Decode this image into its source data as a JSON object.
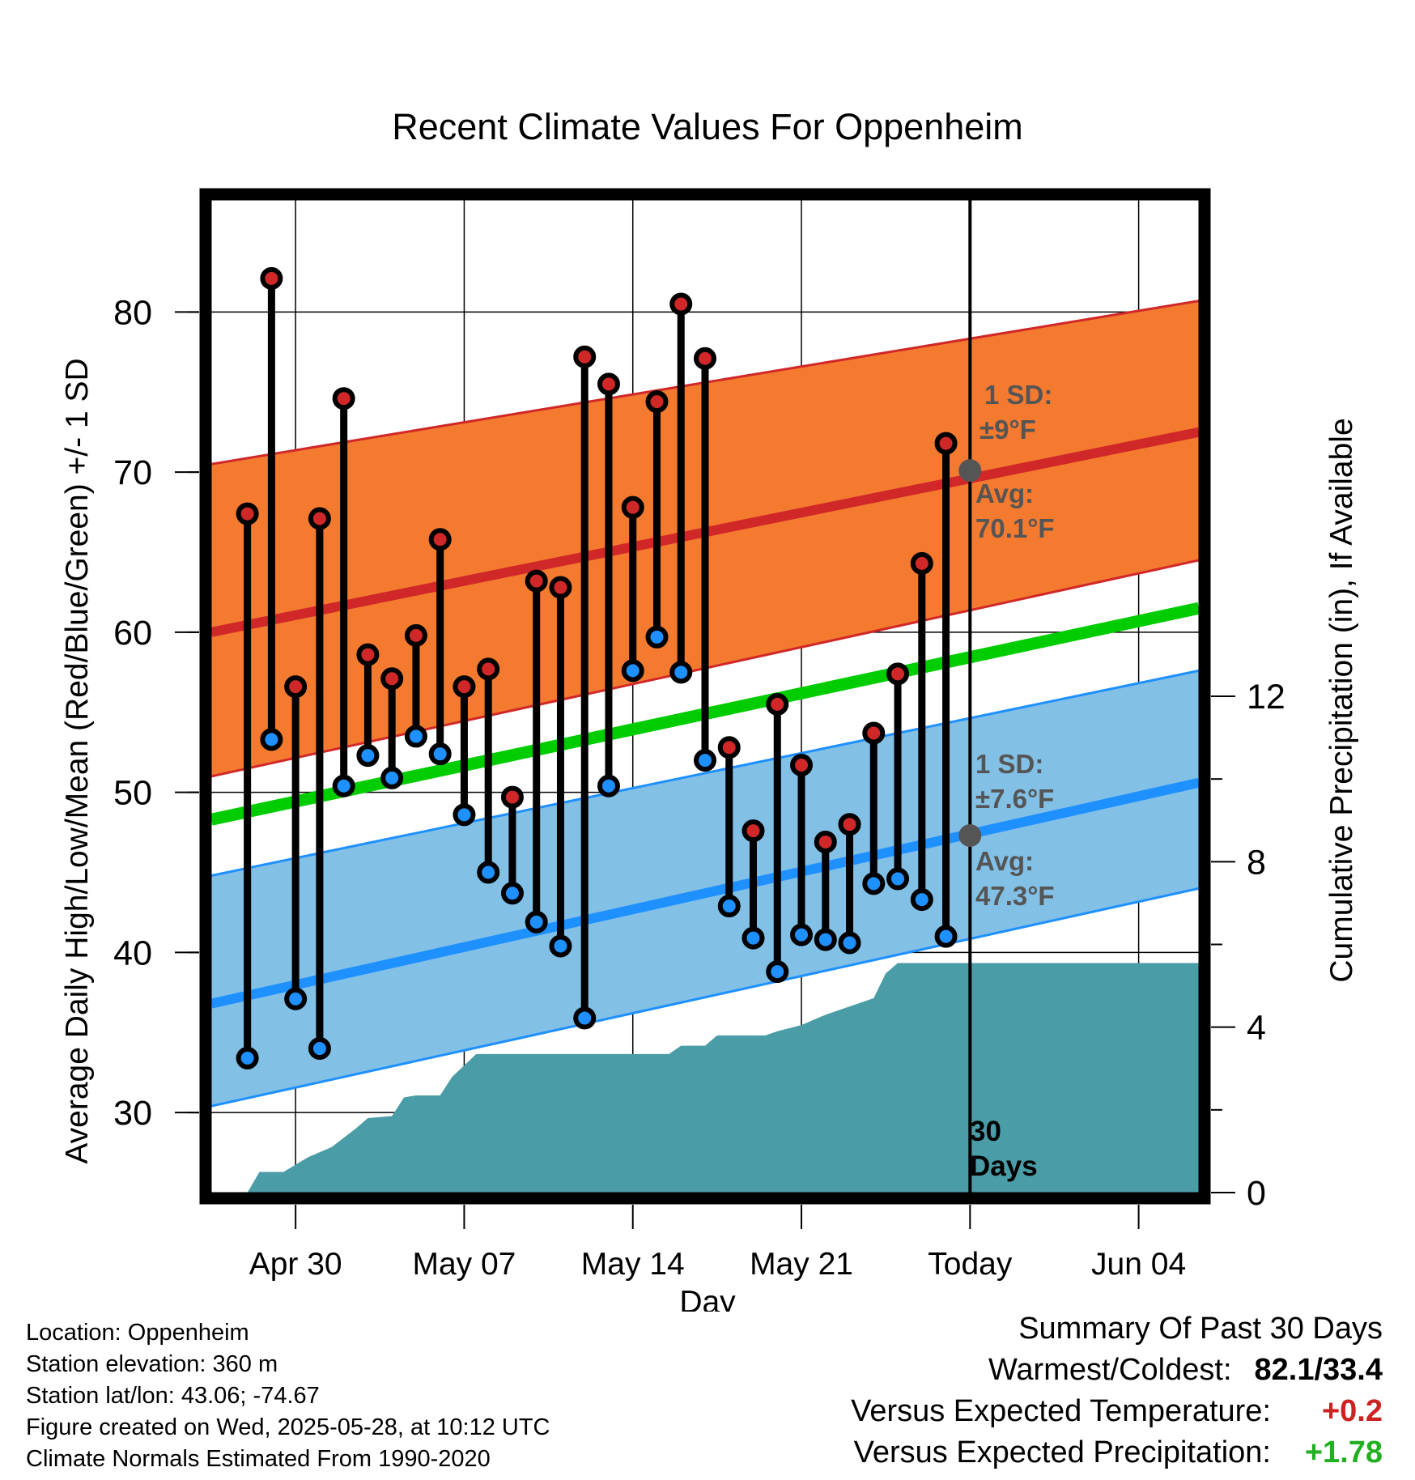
{
  "chart_data": {
    "type": "line",
    "title": "Recent Climate Values For Oppenheim",
    "xlabel": "Day",
    "ylabel": "Average Daily High/Low/Mean (Red/Blue/Green) +/- 1 SD",
    "y2label": "Cumulative Precipitation (in), If Available",
    "ylim": [
      25,
      87
    ],
    "y2lim": [
      0,
      24
    ],
    "yticks": [
      30,
      40,
      50,
      60,
      70,
      80
    ],
    "y2ticks": [
      0,
      4,
      8,
      12
    ],
    "x_tick_labels": [
      {
        "day": 3,
        "label": "Apr 30"
      },
      {
        "day": 10,
        "label": "May 07"
      },
      {
        "day": 17,
        "label": "May 14"
      },
      {
        "day": 24,
        "label": "May 21"
      },
      {
        "day": 31,
        "label": "Today"
      },
      {
        "day": 38,
        "label": "Jun 04"
      }
    ],
    "xlim": [
      -0.5,
      40.5
    ],
    "normal_high": {
      "start": 60.0,
      "end": 72.5,
      "sd_label": "1 SD:",
      "sd_value": "±9°F",
      "avg_label": "Avg:",
      "avg_value": "70.1°F",
      "today_value": 70.1
    },
    "normal_low": {
      "start": 36.8,
      "end": 50.6,
      "sd_label": "1 SD:",
      "sd_value": "±7.6°F",
      "avg_label": "Avg:",
      "avg_value": "47.3°F",
      "today_value": 47.3
    },
    "normal_mean": {
      "start": 48.3,
      "end": 61.5
    },
    "high_sd_band": {
      "lower_start": 51.0,
      "lower_end": 64.5,
      "upper_start": 70.5,
      "upper_end": 80.7
    },
    "low_sd_band": {
      "lower_start": 30.4,
      "lower_end": 44.0,
      "upper_start": 44.8,
      "upper_end": 57.6
    },
    "days": [
      {
        "day": 1,
        "high": 67.4,
        "low": 33.4
      },
      {
        "day": 2,
        "high": 82.1,
        "low": 53.3
      },
      {
        "day": 3,
        "high": 56.6,
        "low": 37.1
      },
      {
        "day": 4,
        "high": 67.1,
        "low": 34.0
      },
      {
        "day": 5,
        "high": 74.6,
        "low": 50.4
      },
      {
        "day": 6,
        "high": 58.6,
        "low": 52.3
      },
      {
        "day": 7,
        "high": 57.1,
        "low": 50.9
      },
      {
        "day": 8,
        "high": 59.8,
        "low": 53.5
      },
      {
        "day": 9,
        "high": 65.8,
        "low": 52.4
      },
      {
        "day": 10,
        "high": 56.6,
        "low": 48.6
      },
      {
        "day": 11,
        "high": 57.7,
        "low": 45.0
      },
      {
        "day": 12,
        "high": 49.7,
        "low": 43.7
      },
      {
        "day": 13,
        "high": 63.2,
        "low": 41.9
      },
      {
        "day": 14,
        "high": 62.8,
        "low": 40.4
      },
      {
        "day": 15,
        "high": 77.2,
        "low": 35.9
      },
      {
        "day": 16,
        "high": 75.5,
        "low": 50.4
      },
      {
        "day": 17,
        "high": 67.8,
        "low": 57.6
      },
      {
        "day": 18,
        "high": 74.4,
        "low": 59.7
      },
      {
        "day": 19,
        "high": 80.5,
        "low": 57.5
      },
      {
        "day": 20,
        "high": 77.1,
        "low": 52.0
      },
      {
        "day": 21,
        "high": 52.8,
        "low": 42.9
      },
      {
        "day": 22,
        "high": 47.6,
        "low": 40.9
      },
      {
        "day": 23,
        "high": 55.5,
        "low": 38.8
      },
      {
        "day": 24,
        "high": 51.7,
        "low": 41.1
      },
      {
        "day": 25,
        "high": 46.9,
        "low": 40.8
      },
      {
        "day": 26,
        "high": 48.0,
        "low": 40.6
      },
      {
        "day": 27,
        "high": 53.7,
        "low": 44.3
      },
      {
        "day": 28,
        "high": 57.4,
        "low": 44.6
      },
      {
        "day": 29,
        "high": 64.3,
        "low": 43.3
      },
      {
        "day": 30,
        "high": 71.8,
        "low": 41.0
      }
    ],
    "precip_cumulative": [
      [
        0.5,
        0.0
      ],
      [
        1.0,
        0.0
      ],
      [
        1.5,
        0.5
      ],
      [
        2.5,
        0.5
      ],
      [
        3.5,
        0.85
      ],
      [
        4.5,
        1.1
      ],
      [
        5.5,
        1.55
      ],
      [
        6.0,
        1.8
      ],
      [
        7.0,
        1.85
      ],
      [
        7.5,
        2.3
      ],
      [
        8.0,
        2.35
      ],
      [
        9.0,
        2.35
      ],
      [
        9.5,
        2.8
      ],
      [
        10.5,
        3.35
      ],
      [
        11.5,
        3.35
      ],
      [
        17.5,
        3.35
      ],
      [
        18.5,
        3.35
      ],
      [
        19.0,
        3.55
      ],
      [
        20.0,
        3.55
      ],
      [
        20.5,
        3.8
      ],
      [
        22.5,
        3.8
      ],
      [
        23.0,
        3.9
      ],
      [
        24.0,
        4.05
      ],
      [
        25.0,
        4.3
      ],
      [
        26.0,
        4.5
      ],
      [
        27.0,
        4.7
      ],
      [
        27.5,
        5.3
      ],
      [
        28.0,
        5.55
      ],
      [
        40.5,
        5.55
      ]
    ],
    "today_marker_day": 31,
    "today_marker_label": "30 Days"
  },
  "info": {
    "location": "Location: Oppenheim",
    "elevation": "Station elevation: 360 m",
    "latlon": "Station lat/lon: 43.06; -74.67",
    "created": "Figure created on Wed, 2025-05-28, at 10:12 UTC",
    "normals": "Climate Normals Estimated From 1990-2020"
  },
  "summary": {
    "title": "Summary Of Past 30 Days",
    "warmest_label": "Warmest/Coldest:",
    "warmest_value": "82.1/33.4",
    "temp_label": "Versus Expected Temperature:",
    "temp_value": "+0.2",
    "precip_label": "Versus Expected Precipitation:",
    "precip_value": "+1.78"
  },
  "colors": {
    "high_band": "#f47a30",
    "low_band": "#82c0e6",
    "high_line": "#d02828",
    "low_line": "#1e90ff",
    "mean_line": "#00cc00",
    "precip": "#4a9ca6",
    "annotation": "#555555"
  }
}
